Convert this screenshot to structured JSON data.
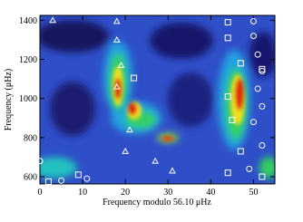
{
  "chart_data": {
    "type": "scatter",
    "x_label": "Frequency modulo 56.10 μHz",
    "y_label": "Frequency (μHz)",
    "xlim": [
      0,
      55
    ],
    "ylim": [
      563,
      1425
    ],
    "xticks": [
      0,
      10,
      20,
      30,
      40,
      50
    ],
    "yticks": [
      600,
      800,
      1000,
      1200,
      1400
    ],
    "series": [
      {
        "marker": "triangle",
        "color": "#ffffff",
        "x": [
          3,
          18,
          18,
          19,
          18,
          21,
          20,
          31,
          27
        ],
        "values": [
          1400,
          1395,
          1300,
          1170,
          1060,
          840,
          730,
          630,
          680
        ]
      },
      {
        "marker": "square",
        "color": "#ffffff",
        "x": [
          44,
          44,
          47,
          22,
          44,
          45,
          47,
          52,
          44,
          52,
          9,
          2
        ],
        "values": [
          1390,
          1310,
          1180,
          1105,
          1010,
          890,
          730,
          600,
          620,
          1150,
          610,
          575
        ]
      },
      {
        "marker": "circle",
        "color": "#ffffff",
        "x": [
          50,
          50,
          51,
          52,
          51,
          52,
          50,
          52,
          0,
          5,
          11,
          49
        ],
        "values": [
          1395,
          1320,
          1225,
          1140,
          1050,
          960,
          880,
          760,
          680,
          580,
          590,
          640
        ]
      }
    ]
  }
}
